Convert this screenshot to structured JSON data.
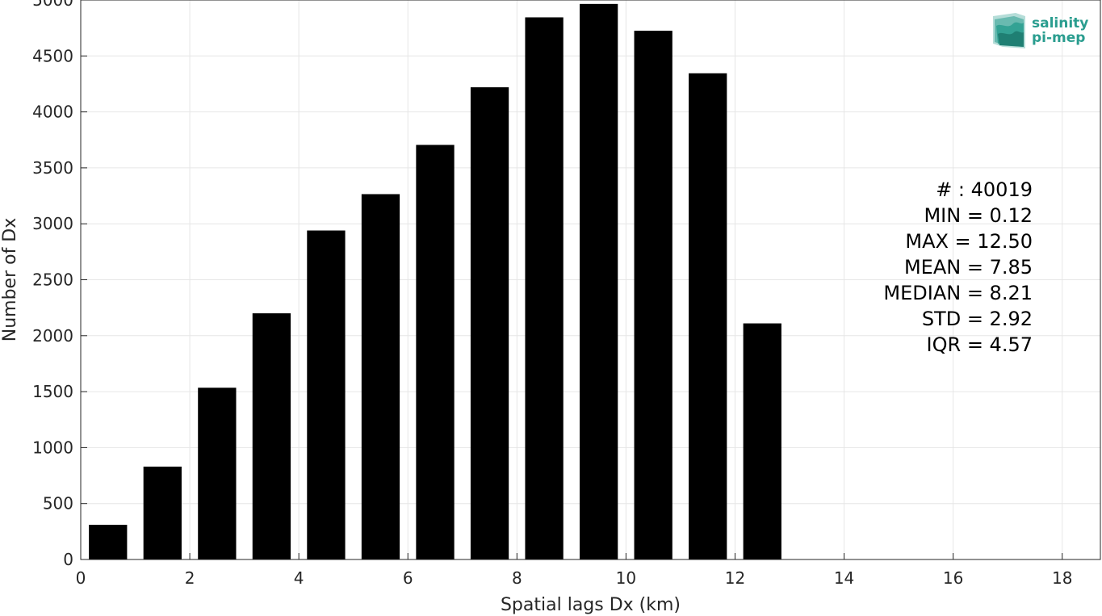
{
  "chart_data": {
    "type": "bar",
    "title": "",
    "xlabel": "Spatial lags Dx (km)",
    "ylabel": "Number of Dx",
    "xlim": [
      0,
      18.7
    ],
    "ylim": [
      0,
      5000
    ],
    "xticks": [
      0,
      2,
      4,
      6,
      8,
      10,
      12,
      14,
      16,
      18
    ],
    "yticks": [
      0,
      500,
      1000,
      1500,
      2000,
      2500,
      3000,
      3500,
      4000,
      4500,
      5000
    ],
    "grid": true,
    "bar_color": "#000000",
    "bar_width": 0.7,
    "x": [
      0.5,
      1.5,
      2.5,
      3.5,
      4.5,
      5.5,
      6.5,
      7.5,
      8.5,
      9.5,
      10.5,
      11.5,
      12.5
    ],
    "values": [
      310,
      830,
      1535,
      2200,
      2940,
      3265,
      3705,
      4220,
      4845,
      4965,
      4725,
      4345,
      2110
    ],
    "annotations": [
      "# : 40019",
      "MIN = 0.12",
      "MAX =  12.50",
      "MEAN = 7.85",
      "MEDIAN = 8.21",
      "STD = 2.92",
      "IQR = 4.57"
    ]
  },
  "logo": {
    "line1": "salinity",
    "line2": "pi-mep",
    "color": "#2a9d8f"
  }
}
